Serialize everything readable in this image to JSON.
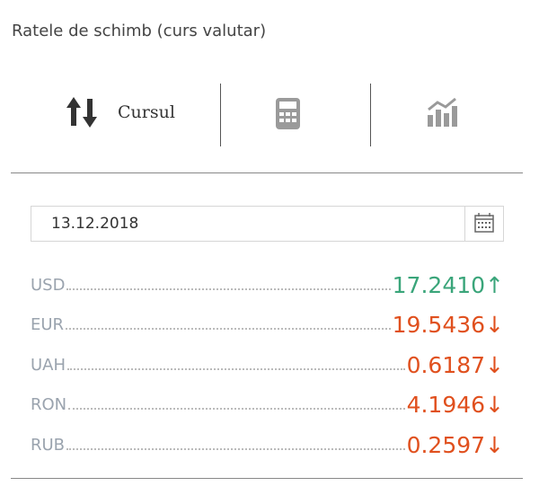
{
  "header": {
    "title": "Ratele de schimb (curs valutar)"
  },
  "tabs": {
    "active_label": "Cursul"
  },
  "date_input": {
    "value": "13.12.2018"
  },
  "rates": [
    {
      "currency": "USD",
      "value": "17.2410",
      "arrow": "↑"
    },
    {
      "currency": "EUR",
      "value": "19.5436",
      "arrow": "↓"
    },
    {
      "currency": "UAH",
      "value": "0.6187",
      "arrow": "↓"
    },
    {
      "currency": "RON",
      "value": "4.1946",
      "arrow": "↓"
    },
    {
      "currency": "RUB",
      "value": "0.2597",
      "arrow": "↓"
    }
  ]
}
